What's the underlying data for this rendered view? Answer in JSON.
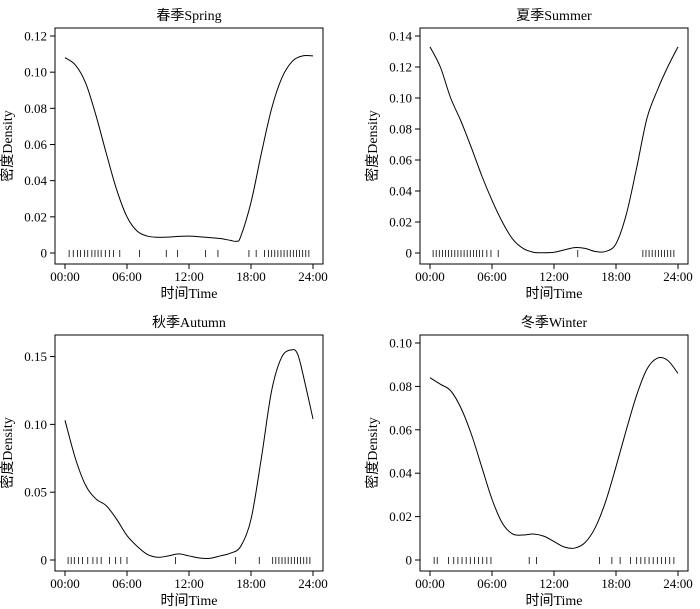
{
  "chart_data": [
    {
      "type": "line",
      "title": "春季Spring",
      "xlabel": "时间Time",
      "ylabel": "密度Density",
      "xlim": [
        0,
        24
      ],
      "ylim": [
        0,
        0.12
      ],
      "xticks": [
        0,
        6,
        12,
        18,
        24
      ],
      "xtick_labels": [
        "00:00",
        "06:00",
        "12:00",
        "18:00",
        "24:00"
      ],
      "yticks": [
        0,
        0.02,
        0.04,
        0.06,
        0.08,
        0.1,
        0.12
      ],
      "ytick_labels": [
        "0",
        "0.02",
        "0.04",
        "0.06",
        "0.08",
        "0.10",
        "0.12"
      ],
      "series": [
        {
          "name": "density",
          "x": [
            0,
            1,
            2,
            3,
            4,
            5,
            6,
            7,
            8,
            9,
            10,
            11,
            12,
            13,
            14,
            15,
            16,
            16.6,
            17,
            18,
            19,
            20,
            21,
            22,
            23,
            24
          ],
          "y": [
            0.108,
            0.104,
            0.094,
            0.076,
            0.055,
            0.035,
            0.02,
            0.012,
            0.0093,
            0.0087,
            0.0088,
            0.0092,
            0.0093,
            0.009,
            0.0085,
            0.008,
            0.007,
            0.0065,
            0.009,
            0.028,
            0.055,
            0.08,
            0.097,
            0.106,
            0.109,
            0.109
          ]
        }
      ],
      "rug": [
        0.4,
        0.8,
        1.2,
        1.5,
        1.9,
        2.2,
        2.6,
        2.9,
        3.2,
        3.5,
        3.9,
        4.3,
        4.7,
        5.3,
        7.2,
        9.8,
        10.9,
        13.6,
        14.8,
        17.8,
        18.5,
        19.3,
        19.7,
        20.0,
        20.3,
        20.6,
        20.9,
        21.2,
        21.5,
        21.8,
        22.1,
        22.4,
        22.7,
        23.0,
        23.3,
        23.6
      ]
    },
    {
      "type": "line",
      "title": "夏季Summer",
      "xlabel": "时间Time",
      "ylabel": "密度Density",
      "xlim": [
        0,
        24
      ],
      "ylim": [
        0,
        0.14
      ],
      "xticks": [
        0,
        6,
        12,
        18,
        24
      ],
      "xtick_labels": [
        "00:00",
        "06:00",
        "12:00",
        "18:00",
        "24:00"
      ],
      "yticks": [
        0,
        0.02,
        0.04,
        0.06,
        0.08,
        0.1,
        0.12,
        0.14
      ],
      "ytick_labels": [
        "0",
        "0.02",
        "0.04",
        "0.06",
        "0.08",
        "0.10",
        "0.12",
        "0.14"
      ],
      "series": [
        {
          "name": "density",
          "x": [
            0,
            1,
            2,
            3,
            4,
            5,
            6,
            7,
            8,
            9,
            10,
            11,
            12,
            13,
            14,
            15,
            16,
            17,
            18,
            19,
            20,
            21,
            22,
            23,
            24
          ],
          "y": [
            0.133,
            0.12,
            0.1,
            0.085,
            0.068,
            0.05,
            0.034,
            0.02,
            0.009,
            0.003,
            0.0005,
            0.0002,
            0.0005,
            0.002,
            0.0035,
            0.003,
            0.001,
            0.001,
            0.006,
            0.025,
            0.055,
            0.087,
            0.105,
            0.12,
            0.133
          ]
        }
      ],
      "rug": [
        0.3,
        0.6,
        0.9,
        1.2,
        1.5,
        1.8,
        2.1,
        2.4,
        2.7,
        3.0,
        3.3,
        3.6,
        3.9,
        4.2,
        4.5,
        4.8,
        5.1,
        5.5,
        5.9,
        6.6,
        14.3,
        20.6,
        20.9,
        21.2,
        21.5,
        21.8,
        22.1,
        22.4,
        22.7,
        23.0,
        23.3,
        23.6
      ]
    },
    {
      "type": "line",
      "title": "秋季Autumn",
      "xlabel": "时间Time",
      "ylabel": "密度Density",
      "xlim": [
        0,
        24
      ],
      "ylim": [
        0,
        0.16
      ],
      "xticks": [
        0,
        6,
        12,
        18,
        24
      ],
      "xtick_labels": [
        "00:00",
        "06:00",
        "12:00",
        "18:00",
        "24:00"
      ],
      "yticks": [
        0,
        0.05,
        0.1,
        0.15
      ],
      "ytick_labels": [
        "0",
        "0.05",
        "0.10",
        "0.15"
      ],
      "series": [
        {
          "name": "density",
          "x": [
            0,
            1,
            2,
            3,
            4,
            5,
            6,
            7,
            8,
            9,
            10,
            11,
            12,
            13,
            14,
            15,
            16,
            17,
            18,
            19,
            20,
            21,
            22,
            22.5,
            23,
            24
          ],
          "y": [
            0.103,
            0.075,
            0.055,
            0.045,
            0.04,
            0.03,
            0.018,
            0.01,
            0.004,
            0.002,
            0.003,
            0.0045,
            0.003,
            0.0015,
            0.0012,
            0.003,
            0.005,
            0.01,
            0.03,
            0.075,
            0.125,
            0.15,
            0.155,
            0.152,
            0.138,
            0.104
          ]
        }
      ],
      "rug": [
        0.3,
        0.6,
        0.9,
        1.3,
        1.7,
        2.2,
        2.7,
        3.1,
        3.5,
        4.3,
        4.9,
        5.4,
        6.0,
        10.7,
        16.5,
        18.8,
        20.1,
        20.4,
        20.7,
        21.0,
        21.3,
        21.6,
        21.9,
        22.2,
        22.5,
        22.8,
        23.1,
        23.4,
        23.7
      ]
    },
    {
      "type": "line",
      "title": "冬季Winter",
      "xlabel": "时间Time",
      "ylabel": "密度Density",
      "xlim": [
        0,
        24
      ],
      "ylim": [
        0,
        0.1
      ],
      "xticks": [
        0,
        6,
        12,
        18,
        24
      ],
      "xtick_labels": [
        "00:00",
        "06:00",
        "12:00",
        "18:00",
        "24:00"
      ],
      "yticks": [
        0,
        0.02,
        0.04,
        0.06,
        0.08,
        0.1
      ],
      "ytick_labels": [
        "0",
        "0.02",
        "0.04",
        "0.06",
        "0.08",
        "0.10"
      ],
      "series": [
        {
          "name": "density",
          "x": [
            0,
            1,
            2,
            3,
            4,
            5,
            6,
            7,
            8,
            9,
            10,
            11,
            12,
            13,
            14,
            15,
            16,
            17,
            18,
            19,
            20,
            21,
            22,
            23,
            24
          ],
          "y": [
            0.084,
            0.081,
            0.078,
            0.07,
            0.058,
            0.043,
            0.028,
            0.017,
            0.012,
            0.0115,
            0.012,
            0.011,
            0.0085,
            0.006,
            0.0055,
            0.008,
            0.015,
            0.027,
            0.043,
            0.06,
            0.076,
            0.088,
            0.093,
            0.092,
            0.086
          ]
        }
      ],
      "rug": [
        0.4,
        0.7,
        1.8,
        2.3,
        2.7,
        3.1,
        3.5,
        3.9,
        4.3,
        4.7,
        5.1,
        5.5,
        5.9,
        9.6,
        10.3,
        16.4,
        17.6,
        18.4,
        19.4,
        20.0,
        20.4,
        20.8,
        21.2,
        21.6,
        22.0,
        22.4,
        22.8,
        23.2,
        23.6
      ]
    }
  ]
}
